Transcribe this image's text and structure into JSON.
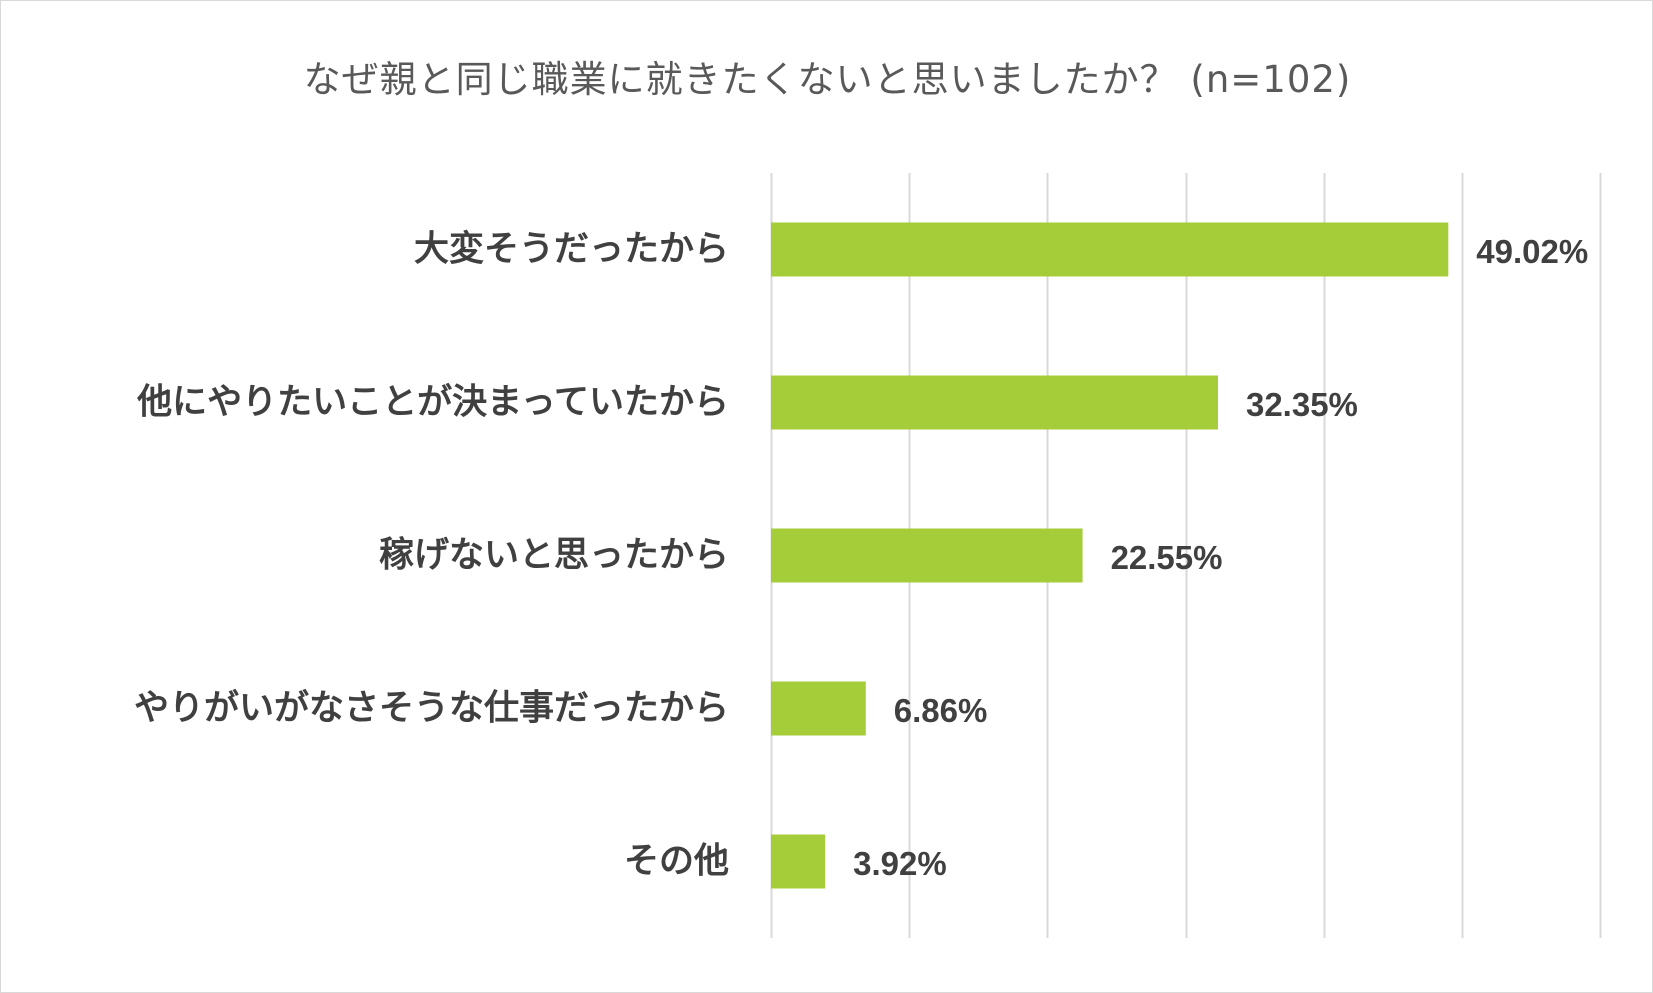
{
  "chart_data": {
    "type": "bar",
    "orientation": "horizontal",
    "title": "なぜ親と同じ職業に就きたくないと思いましたか？ (n=102)",
    "categories": [
      "大変そうだったから",
      "他にやりたいことが決まっていたから",
      "稼げないと思ったから",
      "やりがいがなさそうな仕事だったから",
      "その他"
    ],
    "values": [
      49.02,
      32.35,
      22.55,
      6.86,
      3.92
    ],
    "value_labels": [
      "49.02%",
      "32.35%",
      "22.55%",
      "6.86%",
      "3.92%"
    ],
    "xlim": [
      0,
      60
    ],
    "grid_step": 10,
    "grid": true,
    "legend": "none",
    "bar_color": "#a5cd39",
    "grid_color": "#d9d9d9",
    "text_color": "#404040"
  }
}
